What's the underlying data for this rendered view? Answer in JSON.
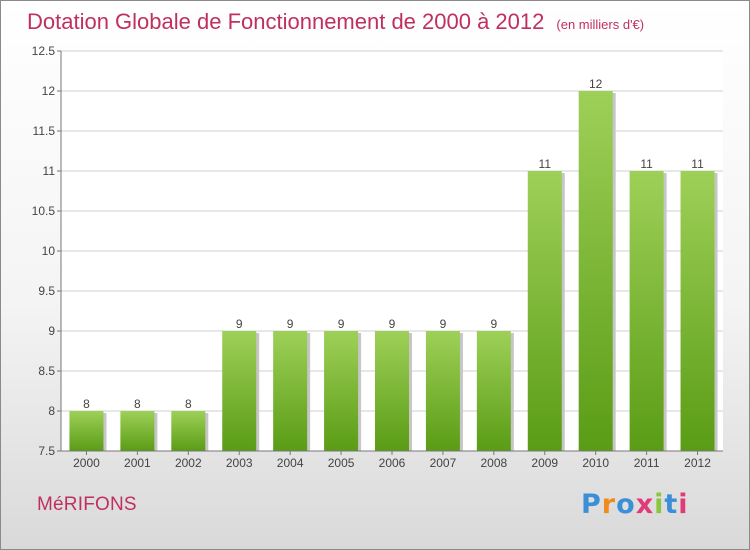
{
  "header": {
    "title": "Dotation Globale de Fonctionnement de 2000 à 2012",
    "subtitle": "(en milliers d'€)"
  },
  "footer": {
    "place": "MéRIFONS",
    "logo": [
      "P",
      "r",
      "o",
      "x",
      "i",
      "t",
      "i"
    ],
    "logo_colors": [
      "#3b8fd6",
      "#f08a1d",
      "#3b8fd6",
      "#e03a7a",
      "#8cc63f",
      "#3b8fd6",
      "#e03a7a"
    ]
  },
  "colors": {
    "bar_top": "#9ed058",
    "bar_bottom": "#5a9c15",
    "bar_shadow": "#c6c6c6",
    "grid": "#cfcfcf",
    "axis": "#777777",
    "brand": "#c0305e"
  },
  "chart_data": {
    "type": "bar",
    "title": "Dotation Globale de Fonctionnement de 2000 à 2012",
    "subtitle": "(en milliers d'€)",
    "categories": [
      "2000",
      "2001",
      "2002",
      "2003",
      "2004",
      "2005",
      "2006",
      "2007",
      "2008",
      "2009",
      "2010",
      "2011",
      "2012"
    ],
    "values": [
      8,
      8,
      8,
      9,
      9,
      9,
      9,
      9,
      9,
      11,
      12,
      11,
      11
    ],
    "data_labels": [
      "8",
      "8",
      "8",
      "9",
      "9",
      "9",
      "9",
      "9",
      "9",
      "11",
      "12",
      "11",
      "11"
    ],
    "ylim": [
      7.5,
      12.5
    ],
    "yticks": [
      "7.5",
      "8",
      "8.5",
      "9",
      "9.5",
      "10",
      "10.5",
      "11",
      "11.5",
      "12",
      "12.5"
    ],
    "xlabel": "",
    "ylabel": "",
    "grid": true,
    "legend": "none"
  }
}
